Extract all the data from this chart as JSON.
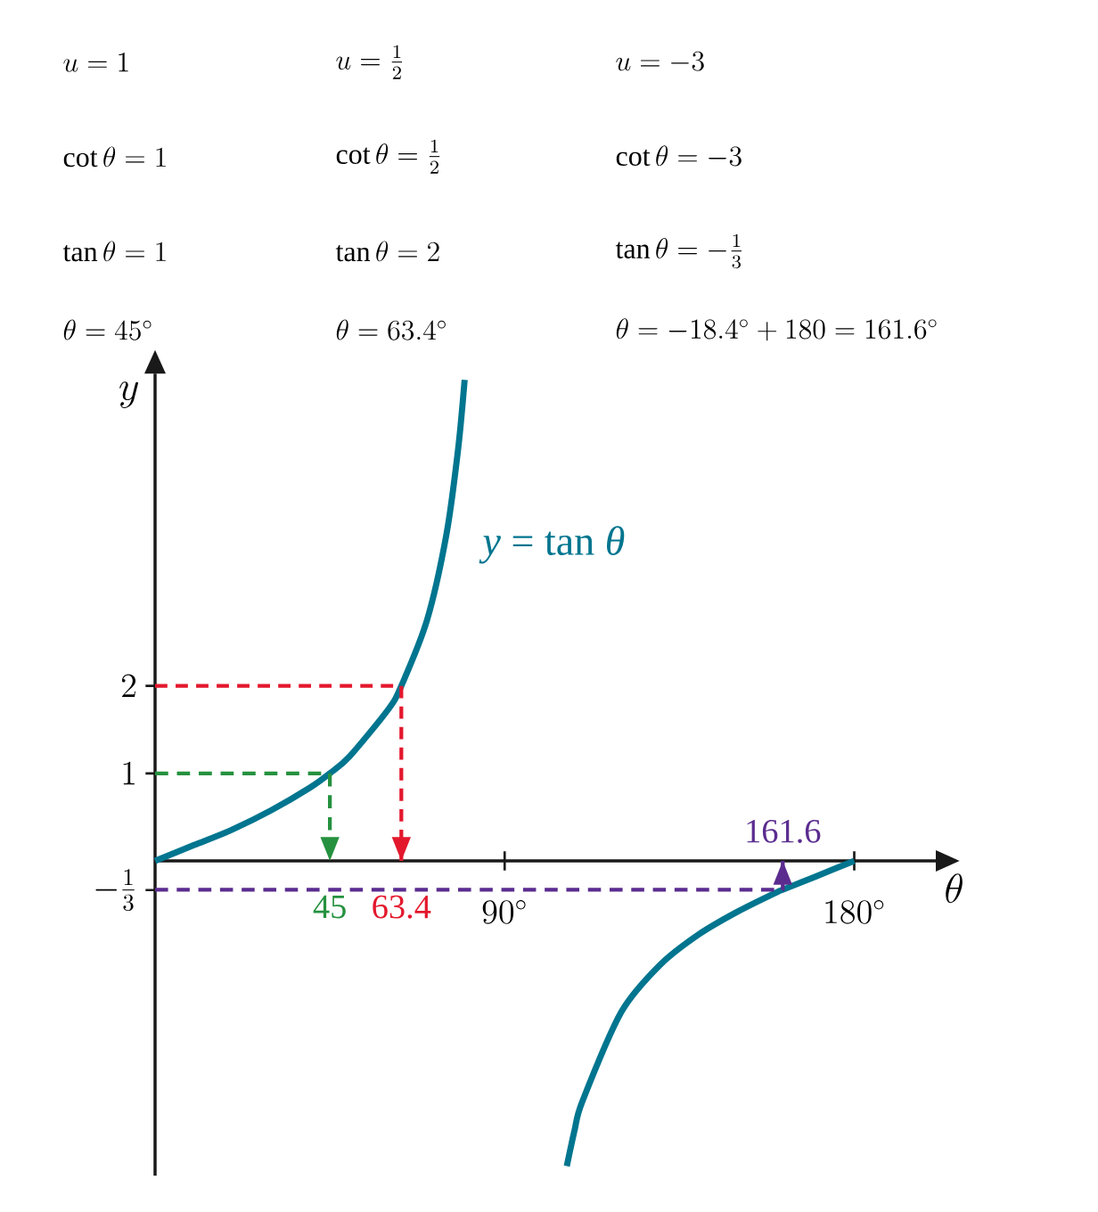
{
  "chart_data": {
    "type": "line",
    "xlabel": "\\theta",
    "ylabel": "y",
    "xlim": [
      0,
      201
    ],
    "ylim": [
      -3.6,
      5.57
    ],
    "xticks": [
      {
        "value": 90,
        "label": "90^\\circ"
      },
      {
        "value": 180,
        "label": "180^\\circ"
      }
    ],
    "yticks": [
      {
        "value": 1,
        "label": "1"
      },
      {
        "value": 2,
        "label": "2"
      },
      {
        "value": -0.3333,
        "label": "-\\frac{1}{3}"
      }
    ],
    "series": [
      {
        "name": "*y* = tan *θ*",
        "color": "#00758f",
        "line_style": "solid",
        "x": [
          0,
          10,
          20,
          30,
          40,
          45,
          50,
          60,
          63.4,
          70,
          75,
          78,
          79.7,
          null,
          106,
          108,
          110,
          120,
          130,
          140,
          150,
          160,
          161.6,
          170,
          180
        ],
        "values": [
          0,
          0.18,
          0.36,
          0.58,
          0.84,
          1,
          1.19,
          1.73,
          2,
          2.75,
          3.73,
          4.7,
          5.5,
          null,
          -3.49,
          -3.08,
          -2.75,
          -1.73,
          -1.19,
          -0.84,
          -0.58,
          -0.36,
          -0.33,
          -0.18,
          0
        ]
      },
      {
        "color": "#25913f",
        "line_style": "dashed",
        "x": [
          0,
          45,
          45
        ],
        "values": [
          1,
          1,
          0
        ]
      },
      {
        "color": "#e3182d",
        "line_style": "dashed",
        "x": [
          0,
          63.4,
          63.4
        ],
        "values": [
          2,
          2,
          0
        ]
      },
      {
        "color": "#5b2c8f",
        "line_style": "dashed",
        "x": [
          0,
          161.6,
          161.6
        ],
        "values": [
          -0.33,
          -0.33,
          0
        ]
      }
    ],
    "annotations": [
      "u = 1",
      "u = \\frac{1}{2}",
      "u = -3",
      "\\cot\\theta = 1",
      "\\cot\\theta = \\frac{1}{2}",
      "\\cot\\theta = -3",
      "\\tan\\theta = 1",
      "\\tan\\theta = 2",
      "\\tan\\theta = -\\frac{1}{3}",
      "\\theta = 45^\\circ",
      "\\theta = 63.4^\\circ",
      "\\theta = -18.4^\\circ + 180 = 161.6^\\circ",
      {
        "text": "45",
        "x": 45,
        "y": 0
      },
      {
        "text": "63.4",
        "x": 63.4,
        "y": 0
      },
      {
        "text": "161.6",
        "x": 161.6,
        "y": 0
      }
    ]
  }
}
